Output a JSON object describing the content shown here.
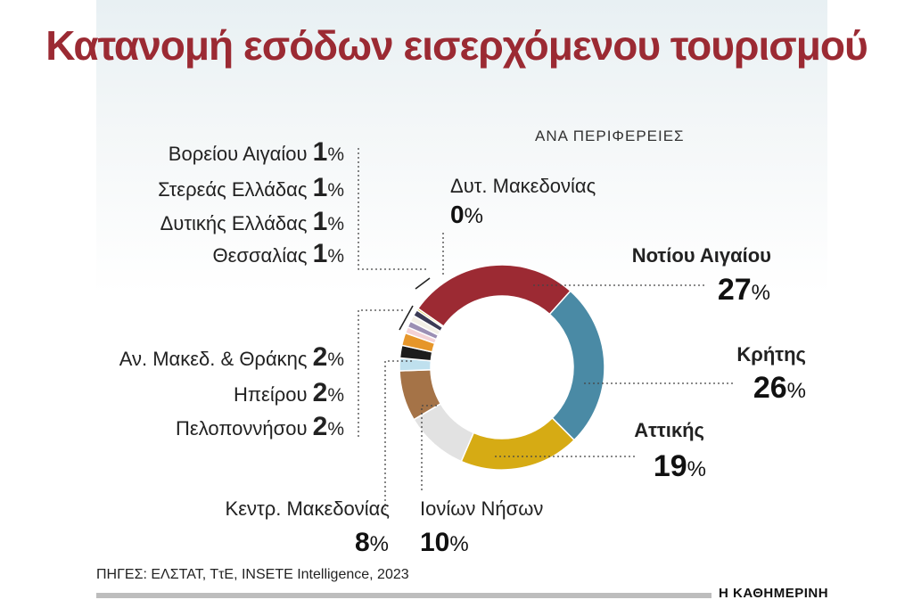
{
  "chart_data": {
    "type": "pie",
    "title": "Κατανομή εσόδων εισερχόμενου τουρισμού",
    "subtitle": "ΑΝΑ ΠΕΡΙΦΕΡΕΙΕΣ",
    "unit": "%",
    "slices": [
      {
        "label": "Νοτίου Αιγαίου",
        "value": 27,
        "color": "#9c2a33"
      },
      {
        "label": "Κρήτης",
        "value": 26,
        "color": "#4a8aa5"
      },
      {
        "label": "Αττικής",
        "value": 19,
        "color": "#d6ab14"
      },
      {
        "label": "Ιονίων Νήσων",
        "value": 10,
        "color": "#e2e2e2"
      },
      {
        "label": "Κεντρ. Μακεδονίας",
        "value": 8,
        "color": "#a57347"
      },
      {
        "label": "Πελοποννήσου",
        "value": 2,
        "color": "#bfe0ee"
      },
      {
        "label": "Ηπείρου",
        "value": 2,
        "color": "#1c1c1c"
      },
      {
        "label": "Αν. Μακεδ. & Θράκης",
        "value": 2,
        "color": "#e6962a"
      },
      {
        "label": "Θεσσαλίας",
        "value": 1,
        "color": "#f4d2d6"
      },
      {
        "label": "Δυτικής Ελλάδας",
        "value": 1,
        "color": "#9b8fb4"
      },
      {
        "label": "Στερεάς Ελλάδας",
        "value": 1,
        "color": "#f2efe6"
      },
      {
        "label": "Βορείου Αιγαίου",
        "value": 1,
        "color": "#3b3b55"
      },
      {
        "label": "Δυτ. Μακεδονίας",
        "value": 0,
        "color": "#d9c234"
      }
    ],
    "legend": "none"
  },
  "source": "ΠΗΓΕΣ: ΕΛΣΤΑΤ, ΤτΕ, INSETE Intelligence, 2023",
  "brand": "Η ΚΑΘΗΜΕΡΙΝΗ"
}
